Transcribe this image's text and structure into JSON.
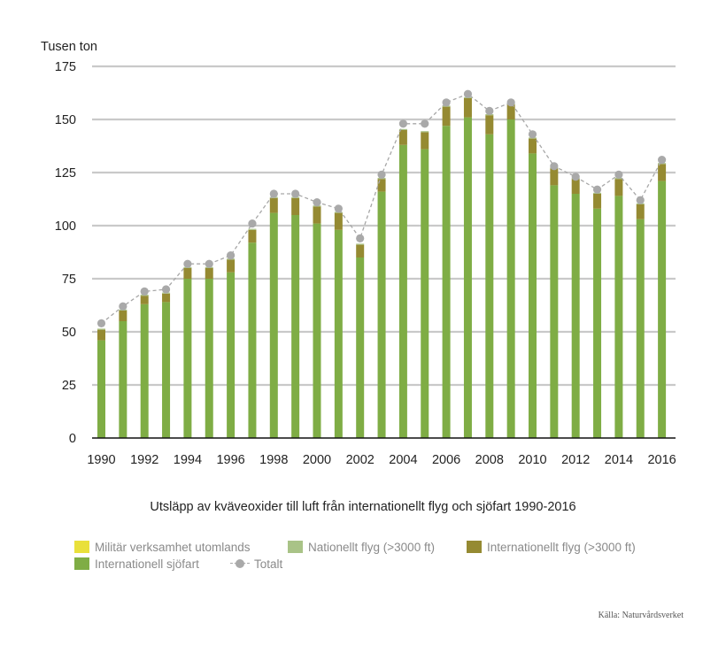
{
  "chart_data": {
    "type": "bar",
    "stacked": true,
    "ylabel": "Tusen ton",
    "title": "Utsläpp av kväveoxider till luft från internationellt flyg och sjöfart 1990-2016",
    "ylim": [
      0,
      175
    ],
    "yticks": [
      0,
      25,
      50,
      75,
      100,
      125,
      150,
      175
    ],
    "grid": true,
    "categories": [
      "1990",
      "1991",
      "1992",
      "1993",
      "1994",
      "1995",
      "1996",
      "1997",
      "1998",
      "1999",
      "2000",
      "2001",
      "2002",
      "2003",
      "2004",
      "2005",
      "2006",
      "2007",
      "2008",
      "2009",
      "2010",
      "2011",
      "2012",
      "2013",
      "2014",
      "2015",
      "2016"
    ],
    "xtick_labels": [
      "1990",
      "1992",
      "1994",
      "1996",
      "1998",
      "2000",
      "2002",
      "2004",
      "2006",
      "2008",
      "2010",
      "2012",
      "2014",
      "2016"
    ],
    "series": [
      {
        "name": "Internationell sjöfart",
        "color": "#7fad45",
        "values": [
          46,
          55,
          63,
          64,
          75,
          75,
          78,
          92,
          106,
          105,
          101,
          98,
          85,
          116,
          138,
          136,
          147,
          151,
          143,
          150,
          134,
          119,
          115,
          108,
          114,
          103,
          121
        ]
      },
      {
        "name": "Internationellt flyg (>3000 ft)",
        "color": "#958a32",
        "values": [
          5,
          5,
          4,
          4,
          5,
          5,
          6,
          6,
          7,
          8,
          8,
          8,
          6,
          6,
          7,
          8,
          9,
          9,
          9,
          7,
          7,
          8,
          7,
          7,
          8,
          7,
          8
        ]
      },
      {
        "name": "Nationellt flyg (>3000 ft)",
        "color": "#a9c387",
        "values": [
          0.5,
          0.5,
          0.5,
          0.5,
          0.5,
          0.5,
          0.5,
          0.5,
          0.5,
          0.5,
          0.5,
          0.5,
          0.5,
          0.5,
          0.5,
          0.5,
          0.5,
          0.5,
          0.5,
          0.5,
          0.5,
          0.5,
          0.5,
          0.5,
          0.5,
          0.5,
          0.5
        ]
      },
      {
        "name": "Militär verksamhet utomlands",
        "color": "#e9e03b",
        "values": [
          0,
          0,
          0,
          0,
          0,
          0,
          0,
          0,
          0,
          0,
          0,
          0,
          0,
          0,
          0,
          0,
          0,
          0,
          0,
          0,
          0,
          0,
          0,
          0,
          0,
          0,
          0
        ]
      }
    ],
    "total": {
      "name": "Totalt",
      "color": "#a9a9a9",
      "values": [
        54,
        62,
        69,
        70,
        82,
        82,
        86,
        101,
        115,
        115,
        111,
        108,
        94,
        124,
        148,
        148,
        158,
        162,
        154,
        158,
        143,
        128,
        123,
        117,
        124,
        112,
        131
      ]
    },
    "legend": {
      "placement": "bottom-left"
    },
    "source": "Källa: Naturvårdsverket"
  }
}
